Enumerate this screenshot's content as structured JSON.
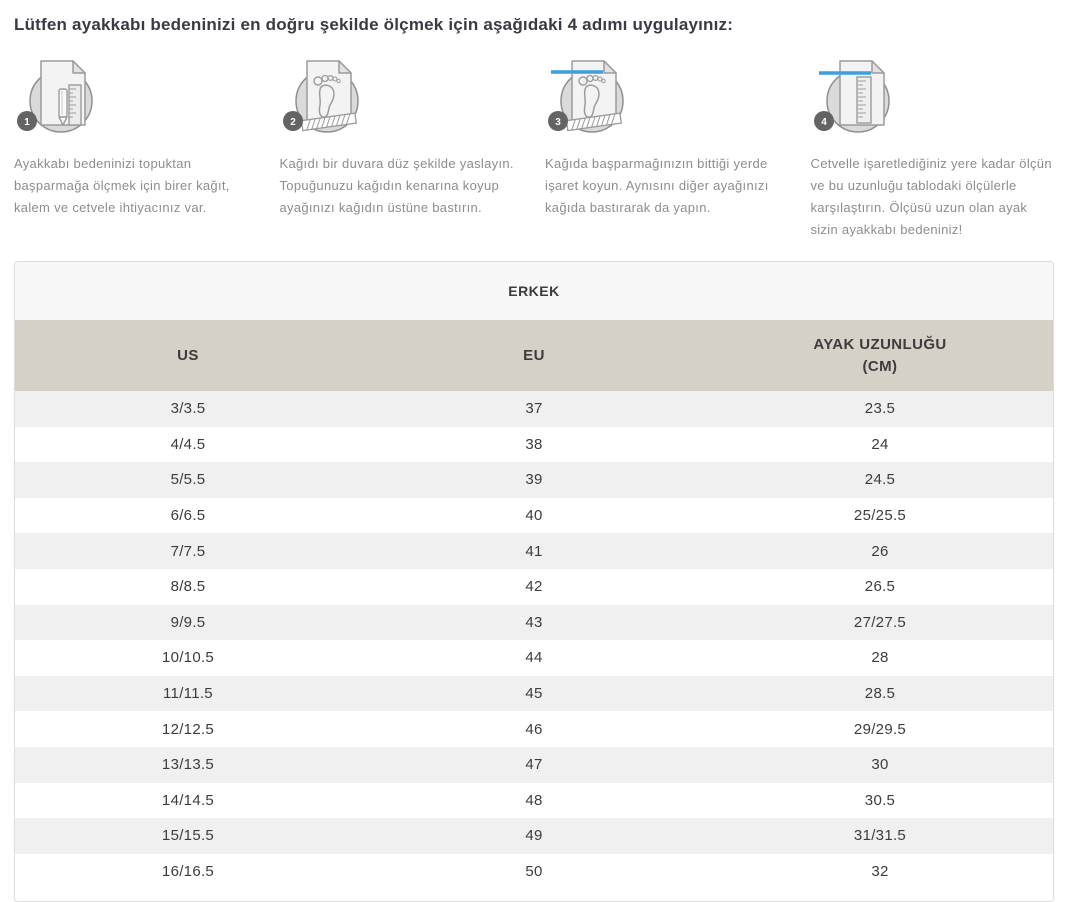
{
  "title": "Lütfen ayakkabı bedeninizi en doğru şekilde ölçmek için aşağıdaki 4 adımı uygulayınız:",
  "steps": [
    {
      "number": "1",
      "icon": "paper-pencil-ruler-icon",
      "text": "Ayakkabı bedeninizi topuktan başparmağa ölçmek için birer kağıt, kalem ve cetvele ihtiyacınız var."
    },
    {
      "number": "2",
      "icon": "foot-on-paper-icon",
      "text": "Kağıdı bir duvara düz şekilde yaslayın. Topuğunuzu kağıdın kenarına koyup ayağınızı kağıdın üstüne bastırın."
    },
    {
      "number": "3",
      "icon": "foot-mark-on-paper-icon",
      "text": "Kağıda başparmağınızın bittiği yerde işaret koyun. Aynısını diğer ayağınızı kağıda bastırarak da yapın."
    },
    {
      "number": "4",
      "icon": "ruler-measure-paper-icon",
      "text": "Cetvelle işaretlediğiniz yere kadar ölçün ve bu uzunluğu tablodaki ölçülerle karşılaştırın. Ölçüsü uzun olan ayak sizin ayakkabı bedeniniz!"
    }
  ],
  "size_table": {
    "group_header": "ERKEK",
    "columns": [
      {
        "label": "US"
      },
      {
        "label": "EU"
      },
      {
        "label": "AYAK UZUNLUĞU",
        "label2": "(CM)"
      }
    ],
    "rows": [
      [
        "3/3.5",
        "37",
        "23.5"
      ],
      [
        "4/4.5",
        "38",
        "24"
      ],
      [
        "5/5.5",
        "39",
        "24.5"
      ],
      [
        "6/6.5",
        "40",
        "25/25.5"
      ],
      [
        "7/7.5",
        "41",
        "26"
      ],
      [
        "8/8.5",
        "42",
        "26.5"
      ],
      [
        "9/9.5",
        "43",
        "27/27.5"
      ],
      [
        "10/10.5",
        "44",
        "28"
      ],
      [
        "11/11.5",
        "45",
        "28.5"
      ],
      [
        "12/12.5",
        "46",
        "29/29.5"
      ],
      [
        "13/13.5",
        "47",
        "30"
      ],
      [
        "14/14.5",
        "48",
        "30.5"
      ],
      [
        "15/15.5",
        "49",
        "31/31.5"
      ],
      [
        "16/16.5",
        "50",
        "32"
      ]
    ]
  },
  "colors": {
    "accent_blue": "#3d9fe0",
    "table_header_bg": "#d5d1c7",
    "group_header_bg": "#f7f7f7",
    "row_alt_bg": "#f0f0f0",
    "border": "#dddddd",
    "title_text": "#3a3a45",
    "step_text": "#8d8d8d",
    "table_text": "#3c3c3c",
    "icon_gray": "#9b9b9b",
    "badge_bg": "#646464"
  }
}
